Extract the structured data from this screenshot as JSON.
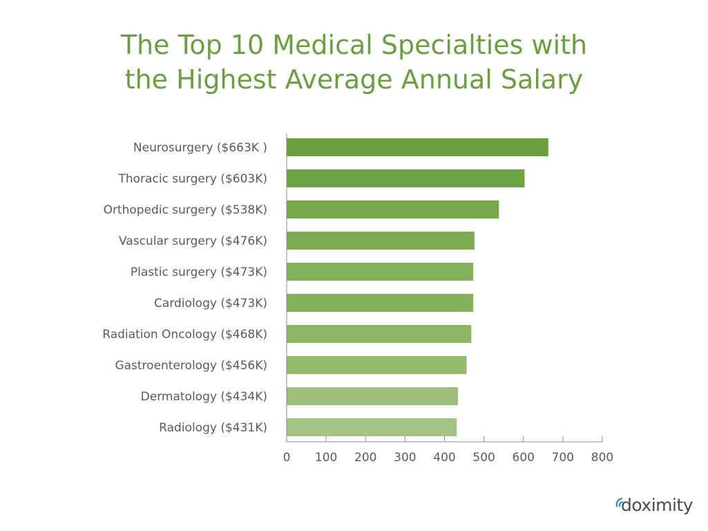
{
  "chart_data": {
    "type": "bar",
    "orientation": "horizontal",
    "title_lines": [
      "The Top 10 Medical Specialties with",
      "the Highest Average Annual Salary"
    ],
    "categories": [
      "Neurosurgery ($663K )",
      "Thoracic surgery ($603K)",
      "Orthopedic surgery ($538K)",
      "Vascular surgery ($476K)",
      "Plastic surgery ($473K)",
      "Cardiology ($473K)",
      "Radiation Oncology ($468K)",
      "Gastroenterology ($456K)",
      "Dermatology ($434K)",
      "Radiology ($431K)"
    ],
    "values": [
      663,
      603,
      538,
      476,
      473,
      473,
      468,
      456,
      434,
      431
    ],
    "xlim": [
      0,
      800
    ],
    "xticks": [
      "0",
      "100",
      "200",
      "300",
      "400",
      "500",
      "600",
      "700",
      "800"
    ],
    "grid": false,
    "bar_colors": [
      "#6a9f3f",
      "#6fa243",
      "#76a74b",
      "#7eac53",
      "#86b15c",
      "#86b15c",
      "#8db665",
      "#94bb6e",
      "#9cc079",
      "#a3c583"
    ]
  },
  "brand": {
    "logo_text": "doximity",
    "title_color": "#6a9f3f",
    "text_color": "#5a5a5a"
  }
}
